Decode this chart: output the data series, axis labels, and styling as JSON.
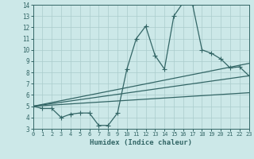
{
  "xlabel": "Humidex (Indice chaleur)",
  "xlim": [
    0,
    23
  ],
  "ylim": [
    3,
    14
  ],
  "xticks": [
    0,
    1,
    2,
    3,
    4,
    5,
    6,
    7,
    8,
    9,
    10,
    11,
    12,
    13,
    14,
    15,
    16,
    17,
    18,
    19,
    20,
    21,
    22,
    23
  ],
  "yticks": [
    3,
    4,
    5,
    6,
    7,
    8,
    9,
    10,
    11,
    12,
    13,
    14
  ],
  "bg_color": "#cce8e8",
  "grid_color": "#aacccc",
  "line_color": "#336666",
  "line1_x": [
    0,
    1,
    2,
    3,
    4,
    5,
    6,
    7,
    8,
    9,
    10,
    11,
    12,
    13,
    14,
    15,
    16,
    17,
    18,
    19,
    20,
    21,
    22,
    23
  ],
  "line1_y": [
    5.0,
    4.8,
    4.8,
    4.0,
    4.3,
    4.4,
    4.4,
    3.3,
    3.3,
    4.4,
    8.3,
    11.0,
    12.1,
    9.5,
    8.3,
    13.0,
    14.2,
    14.0,
    10.0,
    9.7,
    9.2,
    8.4,
    8.5,
    7.7
  ],
  "line2_x": [
    0,
    23
  ],
  "line2_y": [
    5.0,
    7.7
  ],
  "line3_x": [
    0,
    23
  ],
  "line3_y": [
    5.0,
    8.8
  ],
  "line4_x": [
    0,
    23
  ],
  "line4_y": [
    5.0,
    6.2
  ]
}
